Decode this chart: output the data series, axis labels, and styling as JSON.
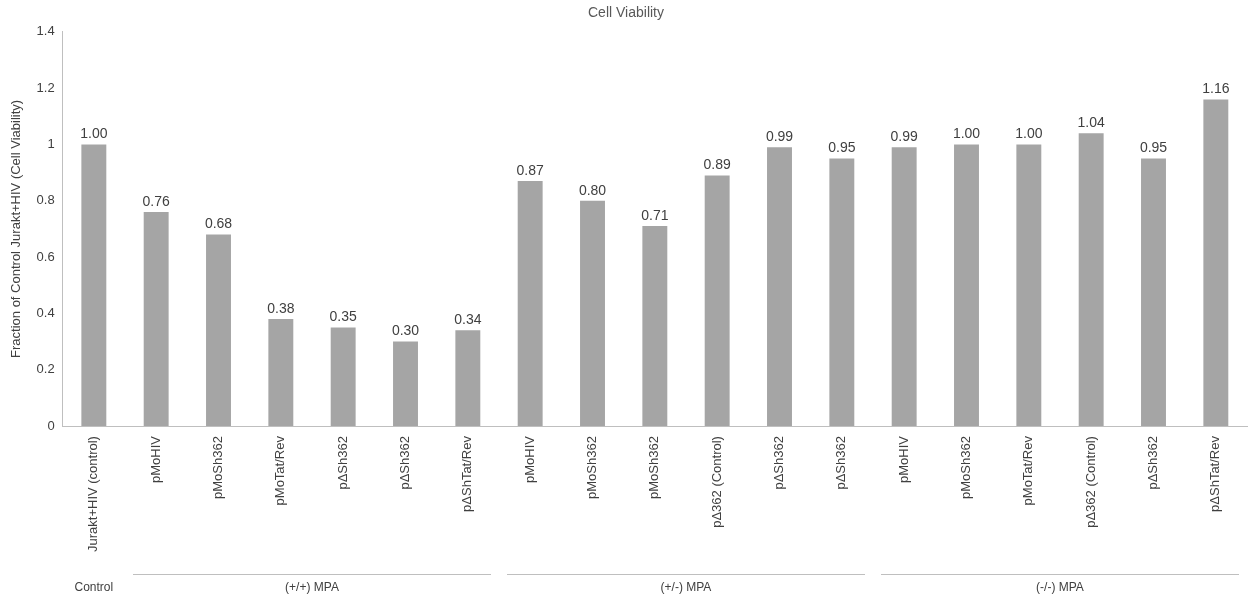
{
  "chart_data": {
    "type": "bar",
    "title": "Cell Viability",
    "ylabel": "Fraction of Control Jurakt+HIV (Cell Viability)",
    "categories": [
      "Jurakt+HIV (control)",
      "pMoHIV",
      "pMoSh362",
      "pMoTat/Rev",
      "pΔSh362",
      "pΔSh362",
      "pΔShTat/Rev",
      "pMoHIV",
      "pMoSh362",
      "pMoSh362",
      "pΔ362 (Control)",
      "pΔSh362",
      "pΔSh362",
      "pMoHIV",
      "pMoSh362",
      "pMoTat/Rev",
      "pΔ362 (Control)",
      "pΔSh362",
      "pΔShTat/Rev"
    ],
    "values": [
      1.0,
      0.76,
      0.68,
      0.38,
      0.35,
      0.3,
      0.34,
      0.87,
      0.8,
      0.71,
      0.89,
      0.99,
      0.95,
      0.99,
      1.0,
      1.0,
      1.04,
      0.95,
      1.16
    ],
    "value_labels": [
      "1.00",
      "0.76",
      "0.68",
      "0.38",
      "0.35",
      "0.30",
      "0.34",
      "0.87",
      "0.80",
      "0.71",
      "0.89",
      "0.99",
      "0.95",
      "0.99",
      "1.00",
      "1.00",
      "1.04",
      "0.95",
      "1.16"
    ],
    "color": "#a5a5a5",
    "ylim": [
      0,
      1.4
    ],
    "yticks": [
      0,
      {
        "value": 0.2,
        "label": "0.2"
      },
      {
        "value": 0.4,
        "label": "0.4"
      },
      {
        "value": 0.6,
        "label": "0.6"
      },
      {
        "value": 0.8,
        "label": "0.8"
      },
      1,
      {
        "value": 1.2,
        "label": "1.2"
      },
      {
        "value": 1.4,
        "label": "1.4"
      }
    ],
    "grid": false,
    "legend": false,
    "annotations": [
      "Control",
      "(+/+) MPA",
      "(+/-) MPA",
      "(-/-) MPA"
    ]
  }
}
